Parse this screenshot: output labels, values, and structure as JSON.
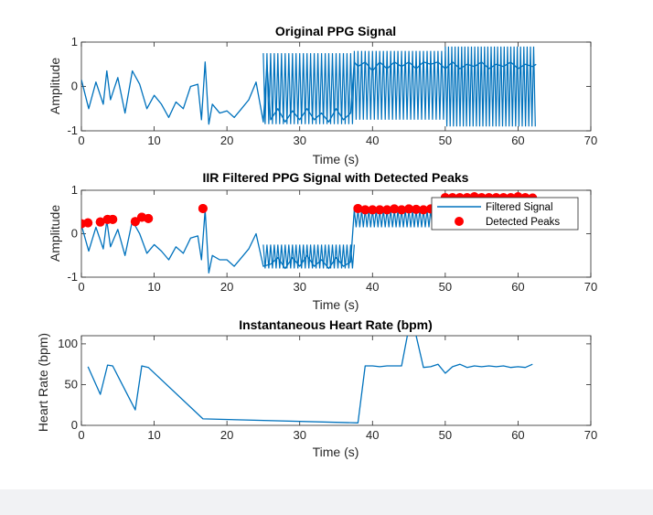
{
  "colors": {
    "line": "#0072bd",
    "marker": "#ff0000",
    "axis": "#262626"
  },
  "chart_data": [
    {
      "type": "line",
      "title": "Original PPG Signal",
      "xlabel": "Time (s)",
      "ylabel": "Amplitude",
      "xlim": [
        0,
        70
      ],
      "ylim": [
        -1,
        1
      ],
      "xticks": [
        0,
        10,
        20,
        30,
        40,
        50,
        60,
        70
      ],
      "yticks": [
        -1,
        0,
        1
      ],
      "xtick_labels": [
        "0",
        "10",
        "20",
        "30",
        "40",
        "50",
        "60",
        "70"
      ],
      "ytick_labels": [
        "-1",
        "0",
        "1"
      ],
      "series": [
        {
          "x": [
            0,
            1,
            2,
            3,
            3.5,
            4,
            5,
            6,
            7,
            8,
            9,
            10,
            11,
            12,
            13,
            14,
            15,
            16,
            16.5,
            17,
            17.5,
            18,
            19,
            20,
            21,
            22,
            23,
            24,
            25,
            25.5,
            26,
            27,
            28,
            29,
            30,
            31,
            32,
            33,
            34,
            35,
            36,
            37,
            37.5,
            38,
            39,
            40,
            41,
            42,
            43,
            44,
            45,
            46,
            47,
            48,
            49,
            50,
            51,
            52,
            53,
            54,
            55,
            56,
            57,
            58,
            59,
            60,
            61,
            62,
            62.5
          ],
          "y": [
            0.15,
            -0.5,
            0.1,
            -0.4,
            0.35,
            -0.3,
            0.2,
            -0.6,
            0.35,
            0.05,
            -0.5,
            -0.2,
            -0.4,
            -0.7,
            -0.35,
            -0.5,
            0.0,
            0.05,
            -0.75,
            0.55,
            -0.85,
            -0.4,
            -0.6,
            -0.55,
            -0.7,
            -0.5,
            -0.3,
            0.1,
            -0.8,
            0.5,
            -0.75,
            -0.5,
            -0.8,
            -0.55,
            -0.75,
            -0.5,
            -0.75,
            -0.6,
            -0.8,
            -0.5,
            -0.75,
            -0.6,
            0.55,
            0.45,
            0.55,
            0.35,
            0.55,
            0.4,
            0.55,
            0.45,
            0.55,
            0.4,
            0.55,
            0.5,
            0.55,
            0.4,
            0.55,
            0.4,
            0.5,
            0.45,
            0.55,
            0.4,
            0.5,
            0.45,
            0.55,
            0.4,
            0.5,
            0.45,
            0.5
          ]
        }
      ],
      "dense_oscillation_segments": [
        {
          "x_start": 25,
          "x_end": 37.5,
          "y_low": -0.85,
          "y_high": 0.75,
          "period": 0.5
        },
        {
          "x_start": 37.5,
          "x_end": 50,
          "y_low": -0.75,
          "y_high": 0.8,
          "period": 0.5
        },
        {
          "x_start": 50,
          "x_end": 62.5,
          "y_low": -0.9,
          "y_high": 0.9,
          "period": 0.45
        }
      ]
    },
    {
      "type": "line",
      "title": "IIR Filtered PPG Signal with Detected Peaks",
      "xlabel": "Time (s)",
      "ylabel": "Amplitude",
      "xlim": [
        0,
        70
      ],
      "ylim": [
        -1,
        1
      ],
      "xticks": [
        0,
        10,
        20,
        30,
        40,
        50,
        60,
        70
      ],
      "yticks": [
        -1,
        0,
        1
      ],
      "xtick_labels": [
        "0",
        "10",
        "20",
        "30",
        "40",
        "50",
        "60",
        "70"
      ],
      "ytick_labels": [
        "-1",
        "0",
        "1"
      ],
      "legend": {
        "position": "top-right",
        "entries": [
          "Filtered Signal",
          "Detected Peaks"
        ]
      },
      "series": [
        {
          "name": "Filtered Signal",
          "x": [
            0,
            1,
            2,
            3,
            3.5,
            4,
            5,
            6,
            7,
            8,
            9,
            10,
            11,
            12,
            13,
            14,
            15,
            16,
            16.5,
            17,
            17.5,
            18,
            19,
            20,
            21,
            22,
            23,
            24,
            25,
            26,
            27,
            28,
            29,
            30,
            31,
            32,
            33,
            34,
            35,
            36,
            37,
            37.5,
            38,
            39,
            40,
            41,
            42,
            43,
            44,
            45,
            46,
            47,
            48,
            49,
            50,
            51,
            52,
            53,
            54,
            55,
            56,
            57,
            58,
            59,
            60,
            61,
            62,
            62.5
          ],
          "y": [
            0.2,
            -0.4,
            0.15,
            -0.35,
            0.3,
            -0.3,
            0.1,
            -0.5,
            0.3,
            0.0,
            -0.45,
            -0.25,
            -0.4,
            -0.6,
            -0.3,
            -0.45,
            -0.1,
            -0.05,
            -0.6,
            0.55,
            -0.9,
            -0.5,
            -0.6,
            -0.6,
            -0.75,
            -0.55,
            -0.35,
            0.0,
            -0.75,
            -0.7,
            -0.55,
            -0.8,
            -0.55,
            -0.75,
            -0.5,
            -0.75,
            -0.6,
            -0.8,
            -0.55,
            -0.75,
            -0.65,
            0.55,
            0.5,
            0.55,
            0.45,
            0.55,
            0.5,
            0.55,
            0.45,
            0.55,
            0.5,
            0.55,
            0.5,
            0.55,
            0.5,
            0.55,
            0.5,
            0.55,
            0.5,
            0.55,
            0.5,
            0.55,
            0.5,
            0.55,
            0.5,
            0.55,
            0.5,
            0.55
          ]
        },
        {
          "name": "Detected Peaks",
          "marker": "circle",
          "x": [
            0,
            0.9,
            2.6,
            3.6,
            4.3,
            7.4,
            8.3,
            9.2,
            16.7,
            38,
            39,
            40,
            41,
            42,
            43,
            44,
            45,
            46,
            47,
            48,
            49,
            50,
            51,
            52,
            53,
            54,
            55,
            56,
            57,
            58,
            59,
            60,
            61,
            62
          ],
          "y": [
            0.23,
            0.25,
            0.27,
            0.33,
            0.33,
            0.28,
            0.38,
            0.35,
            0.58,
            0.58,
            0.55,
            0.55,
            0.55,
            0.55,
            0.57,
            0.55,
            0.57,
            0.56,
            0.55,
            0.57,
            0.55,
            0.83,
            0.83,
            0.83,
            0.83,
            0.85,
            0.83,
            0.83,
            0.83,
            0.83,
            0.83,
            0.85,
            0.83,
            0.82
          ]
        }
      ],
      "dense_oscillation_segments": [
        {
          "x_start": 25,
          "x_end": 37.5,
          "y_low": -0.8,
          "y_high": -0.25,
          "period": 0.5
        },
        {
          "x_start": 37.5,
          "x_end": 50,
          "y_low": 0.15,
          "y_high": 0.55,
          "period": 0.5
        },
        {
          "x_start": 50,
          "x_end": 62.5,
          "y_low": 0.1,
          "y_high": 0.83,
          "period": 0.45
        }
      ]
    },
    {
      "type": "line",
      "title": "Instantaneous Heart Rate (bpm)",
      "xlabel": "Time (s)",
      "ylabel": "Heart Rate (bpm)",
      "xlim": [
        0,
        70
      ],
      "ylim": [
        0,
        110
      ],
      "xticks": [
        0,
        10,
        20,
        30,
        40,
        50,
        60,
        70
      ],
      "yticks": [
        0,
        50,
        100
      ],
      "xtick_labels": [
        "0",
        "10",
        "20",
        "30",
        "40",
        "50",
        "60",
        "70"
      ],
      "ytick_labels": [
        "0",
        "50",
        "100"
      ],
      "series": [
        {
          "x": [
            0.9,
            2.6,
            3.6,
            4.3,
            7.4,
            8.3,
            9.2,
            16.7,
            38,
            39,
            40,
            41,
            42,
            43,
            44,
            45,
            46,
            47,
            48,
            49,
            50,
            51,
            52,
            53,
            54,
            55,
            56,
            57,
            58,
            59,
            60,
            61,
            62
          ],
          "y": [
            72,
            38,
            74,
            73,
            19,
            73,
            71,
            8,
            3,
            73,
            73,
            72,
            73,
            73,
            73,
            120,
            110,
            71,
            72,
            75,
            64,
            72,
            75,
            71,
            73,
            72,
            73,
            72,
            73,
            71,
            72,
            71,
            75
          ]
        }
      ]
    }
  ]
}
